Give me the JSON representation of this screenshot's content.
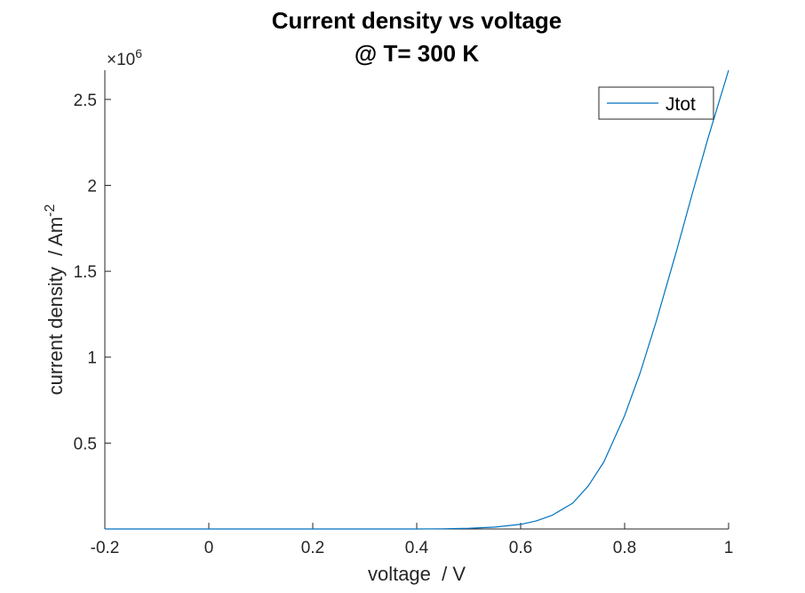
{
  "chart_data": {
    "type": "line",
    "title": [
      "Current density vs voltage",
      "@ T= 300 K"
    ],
    "xlabel": "voltage  / V",
    "ylabel": "current density  / Am",
    "ylabel_superscript": "-2",
    "y_exponent": {
      "base": "×10",
      "power": "6"
    },
    "xlim": [
      -0.2,
      1.0
    ],
    "ylim": [
      0,
      2.67
    ],
    "xticks": [
      -0.2,
      0,
      0.2,
      0.4,
      0.6,
      0.8,
      1.0
    ],
    "xtick_labels": [
      "-0.2",
      "0",
      "0.2",
      "0.4",
      "0.6",
      "0.8",
      "1"
    ],
    "yticks": [
      0.5,
      1.0,
      1.5,
      2.0,
      2.5
    ],
    "ytick_labels": [
      "0.5",
      "1",
      "1.5",
      "2",
      "2.5"
    ],
    "grid": false,
    "legend_position": "top-right",
    "series": [
      {
        "name": "Jtot",
        "color": "#0072BD",
        "x": [
          -0.2,
          0.0,
          0.2,
          0.4,
          0.45,
          0.5,
          0.55,
          0.6,
          0.63,
          0.66,
          0.7,
          0.73,
          0.76,
          0.8,
          0.83,
          0.86,
          0.9,
          0.93,
          0.96,
          1.0
        ],
        "y": [
          0.0,
          0.0,
          0.0,
          0.0,
          0.001,
          0.004,
          0.011,
          0.027,
          0.047,
          0.079,
          0.15,
          0.25,
          0.39,
          0.66,
          0.91,
          1.2,
          1.62,
          1.95,
          2.27,
          2.67
        ]
      }
    ]
  }
}
